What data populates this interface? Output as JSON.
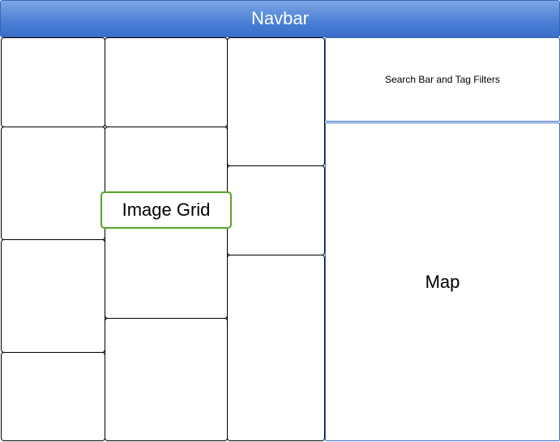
{
  "navbar": {
    "title": "Navbar"
  },
  "search_panel": {
    "label": "Search Bar and Tag Filters"
  },
  "map_panel": {
    "label": "Map"
  },
  "image_grid": {
    "label": "Image Grid"
  },
  "colors": {
    "navbar": "#4a7fd6",
    "panel_border": "#3b6fc9",
    "image_grid_border": "#55a32a"
  }
}
